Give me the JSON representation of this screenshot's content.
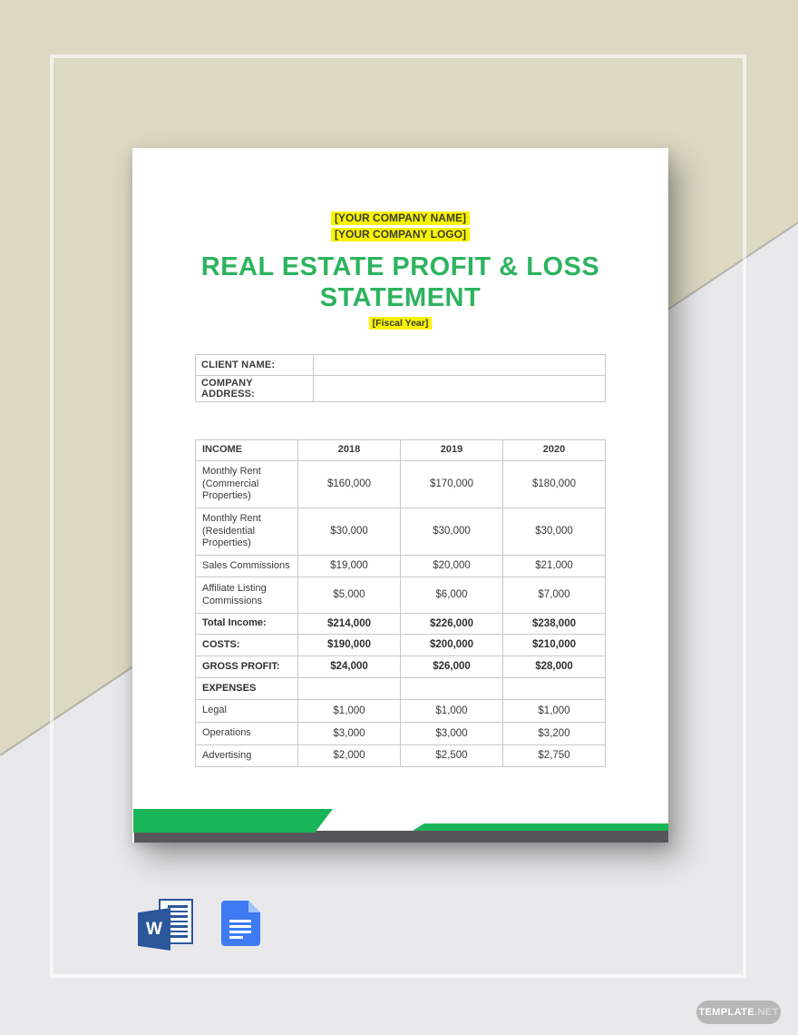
{
  "header": {
    "company_name": "[YOUR COMPANY NAME]",
    "company_logo": "[YOUR COMPANY LOGO]",
    "title_line1": "REAL ESTATE PROFIT & LOSS",
    "title_line2": "STATEMENT",
    "fiscal_year": "[Fiscal Year]"
  },
  "client_info": {
    "rows": [
      {
        "label": "CLIENT NAME:",
        "value": ""
      },
      {
        "label": "COMPANY ADDRESS:",
        "value": ""
      }
    ]
  },
  "income_table": {
    "columns": [
      "INCOME",
      "2018",
      "2019",
      "2020"
    ],
    "rows": [
      {
        "label": "Monthly Rent (Commercial Properties)",
        "values": [
          "$160,000",
          "$170,000",
          "$180,000"
        ],
        "emphasis": false
      },
      {
        "label": "Monthly Rent (Residential Properties)",
        "values": [
          "$30,000",
          "$30,000",
          "$30,000"
        ],
        "emphasis": false
      },
      {
        "label": "Sales Commissions",
        "values": [
          "$19,000",
          "$20,000",
          "$21,000"
        ],
        "emphasis": false
      },
      {
        "label": "Affiliate Listing Commissions",
        "values": [
          "$5,000",
          "$6,000",
          "$7,000"
        ],
        "emphasis": false
      },
      {
        "label": "Total Income:",
        "values": [
          "$214,000",
          "$226,000",
          "$238,000"
        ],
        "emphasis": true
      },
      {
        "label": "COSTS:",
        "values": [
          "$190,000",
          "$200,000",
          "$210,000"
        ],
        "emphasis": true
      },
      {
        "label": "GROSS PROFIT:",
        "values": [
          "$24,000",
          "$26,000",
          "$28,000"
        ],
        "emphasis": true
      },
      {
        "label": "EXPENSES",
        "values": [
          "",
          "",
          ""
        ],
        "emphasis": true
      },
      {
        "label": "Legal",
        "values": [
          "$1,000",
          "$1,000",
          "$1,000"
        ],
        "emphasis": false
      },
      {
        "label": "Operations",
        "values": [
          "$3,000",
          "$3,000",
          "$3,200"
        ],
        "emphasis": false
      },
      {
        "label": "Advertising",
        "values": [
          "$2,000",
          "$2,500",
          "$2,750"
        ],
        "emphasis": false
      }
    ]
  },
  "file_formats": [
    {
      "name": "Microsoft Word",
      "letter": "W"
    },
    {
      "name": "Google Docs"
    }
  ],
  "watermark": {
    "brand": "TEMPLATE",
    "tld": ".NET"
  },
  "colors": {
    "accent_green": "#2db35f",
    "highlight_yellow": "#f8f303",
    "footer_green": "#19b558",
    "footer_gray": "#55565a",
    "word_blue": "#2b579a",
    "gdocs_blue": "#3e7bf2"
  }
}
